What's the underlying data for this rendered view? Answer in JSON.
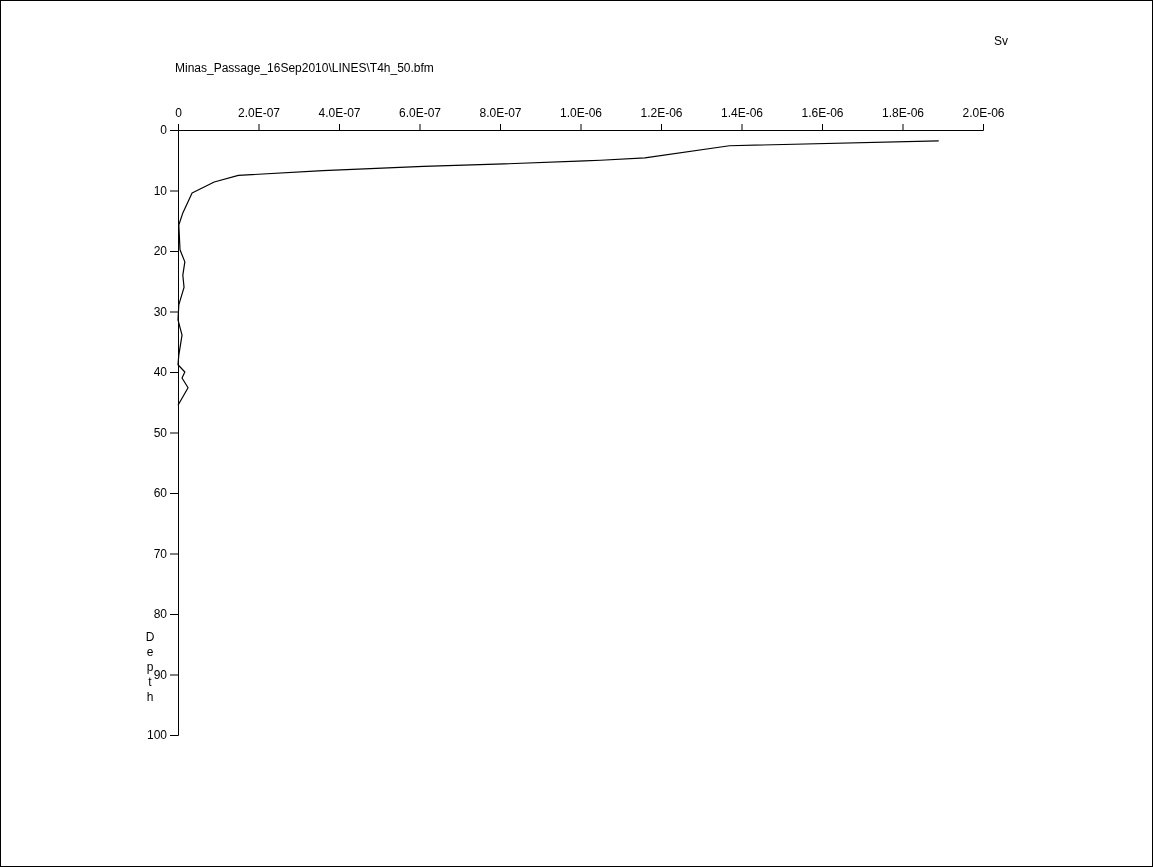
{
  "chart_data": {
    "type": "line",
    "title": "Minas_Passage_16Sep2010\\LINES\\T4h_50.bfm",
    "xlabel": "Sv",
    "ylabel": "Depth",
    "xlim": [
      0,
      2e-06
    ],
    "xticks": [
      0,
      {
        "value": 2e-07,
        "label": "2.0E-07"
      },
      {
        "value": 4e-07,
        "label": "4.0E-07"
      },
      {
        "value": 6e-07,
        "label": "6.0E-07"
      },
      {
        "value": 8e-07,
        "label": "8.0E-07"
      },
      {
        "value": 1e-06,
        "label": "1.0E-06"
      },
      {
        "value": 1.2e-06,
        "label": "1.2E-06"
      },
      {
        "value": 1.4e-06,
        "label": "1.4E-06"
      },
      {
        "value": 1.6e-06,
        "label": "1.6E-06"
      },
      {
        "value": 1.8e-06,
        "label": "1.8E-06"
      },
      {
        "value": 2e-06,
        "label": "2.0E-06"
      }
    ],
    "ylim": [
      100,
      0
    ],
    "yticks": [
      0,
      10,
      20,
      30,
      40,
      50,
      60,
      70,
      80,
      90,
      100
    ],
    "grid": false,
    "marker": "none",
    "line_style": "solid",
    "series": [
      {
        "color": "#000000",
        "x": [
          1.89e-06,
          1.37e-06,
          1.16e-06,
          1.05e-06,
          1.01e-06,
          8.1e-07,
          6.1e-07,
          3.6e-07,
          1.5e-07,
          9e-08,
          3.5e-08,
          1.2e-08,
          2e-09,
          5e-09,
          1.7e-08,
          1.2e-08,
          1.5e-08,
          2e-09,
          0,
          1e-08,
          2e-09,
          0,
          1.7e-08,
          1e-08,
          2.5e-08,
          0
        ],
        "values": [
          1.8,
          2.6,
          4.6,
          5.0,
          5.1,
          5.6,
          6.0,
          6.7,
          7.5,
          8.6,
          10.4,
          13.7,
          15.7,
          19.8,
          21.8,
          24.0,
          26.0,
          28.9,
          31.4,
          33.9,
          37.2,
          38.8,
          40.0,
          41.0,
          42.6,
          45.5
        ]
      }
    ]
  }
}
